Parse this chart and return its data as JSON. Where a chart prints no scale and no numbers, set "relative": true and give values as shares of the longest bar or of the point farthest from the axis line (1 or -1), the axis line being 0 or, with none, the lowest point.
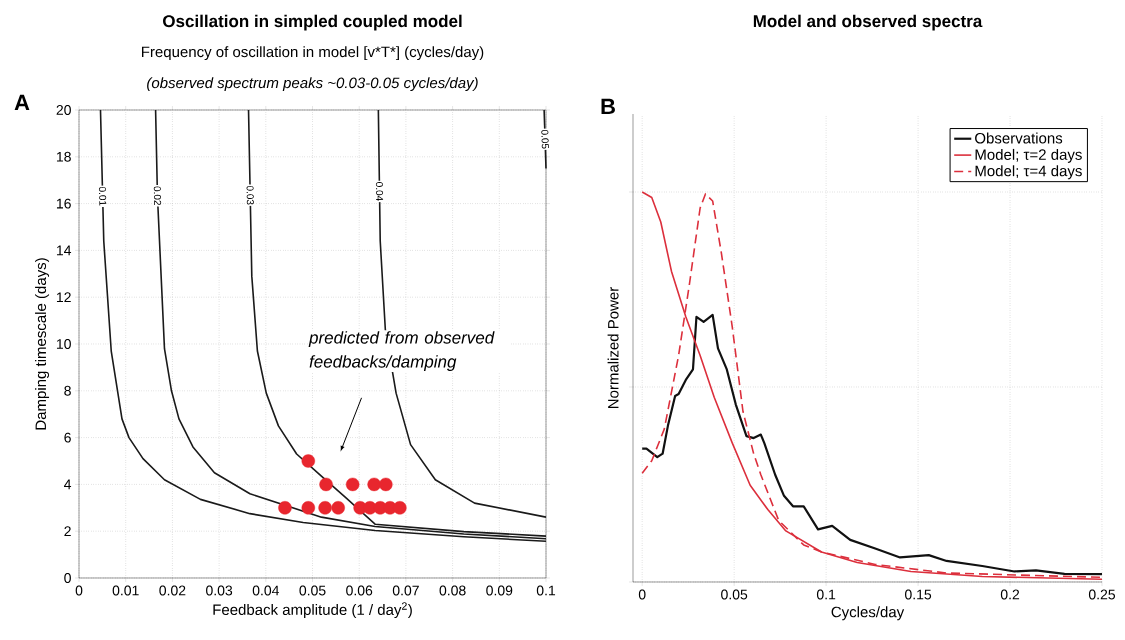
{
  "chart_data": [
    {
      "type": "line",
      "title": "Oscillation in simpled coupled model",
      "subtitle": "Frequency of oscillation in model [v*T*] (cycles/day)",
      "xlabel": "Feedback amplitude (1 / day$^{2}$)",
      "ylabel": "Damping timescale (days)",
      "xlim": [
        0,
        0.1
      ],
      "ylim": [
        0,
        20
      ],
      "xticks": [
        0,
        0.01,
        0.02,
        0.03,
        0.04,
        0.05,
        0.06,
        0.07,
        0.08,
        0.09,
        0.1
      ],
      "yticks": [
        0,
        2,
        4,
        6,
        8,
        10,
        12,
        14,
        16,
        18,
        20
      ],
      "grid": true,
      "annotations": [
        "(observed spectrum peaks ~0.03-0.05 cycles/day)",
        "A",
        "predicted from observed feedbacks/damping"
      ],
      "series": [
        {
          "name": "0.01",
          "color": "#1a1a1a",
          "x": [
            0.0046,
            0.0053,
            0.0069,
            0.0092,
            0.0107,
            0.0137,
            0.0183,
            0.026,
            0.0366,
            0.048,
            0.0634,
            0.0824,
            0.1
          ],
          "values": [
            20,
            14.4,
            9.7,
            6.8,
            6.0,
            5.1,
            4.2,
            3.36,
            2.75,
            2.37,
            2.03,
            1.76,
            1.57
          ]
        },
        {
          "name": "0.02",
          "color": "#1a1a1a",
          "x": [
            0.0164,
            0.0168,
            0.0183,
            0.0198,
            0.0214,
            0.0244,
            0.029,
            0.0366,
            0.0443,
            0.0519,
            0.0634,
            0.0824,
            0.1
          ],
          "values": [
            20,
            16.3,
            9.8,
            8.0,
            6.8,
            5.6,
            4.5,
            3.6,
            null,
            2.6,
            2.2,
            1.88,
            1.68
          ]
        },
        {
          "name": "0.03",
          "color": "#1a1a1a",
          "x": [
            0.0363,
            0.037,
            0.0382,
            0.0401,
            0.0427,
            0.0466,
            0.0519,
            0.0573,
            0.0634,
            0.0824,
            0.1
          ],
          "values": [
            20,
            12.9,
            9.7,
            7.9,
            6.5,
            5.3,
            4.35,
            3.4,
            2.3,
            1.98,
            1.79
          ]
        },
        {
          "name": "0.04",
          "color": "#1a1a1a",
          "x": [
            0.0641,
            0.0645,
            0.0656,
            0.0679,
            0.071,
            0.0763,
            0.0847,
            0.1
          ],
          "values": [
            20,
            14.4,
            10.6,
            7.9,
            5.7,
            4.2,
            3.2,
            2.6
          ]
        },
        {
          "name": "0.05",
          "color": "#1a1a1a",
          "x": [
            0.0996,
            0.1
          ],
          "values": [
            20,
            17.5
          ]
        },
        {
          "type": "scatter",
          "marker": "circle",
          "color": "#e8262e",
          "x": [
            0.0491,
            0.0529,
            0.0586,
            0.0632,
            0.0657,
            0.0441,
            0.0491,
            0.0527,
            0.0555,
            0.0602,
            0.0623,
            0.0645,
            0.0666,
            0.0687
          ],
          "values": [
            5,
            4,
            4,
            4,
            4,
            3,
            3,
            3,
            3,
            3,
            3,
            3,
            3,
            3
          ]
        }
      ]
    },
    {
      "type": "line",
      "title": "Model and observed spectra",
      "xlabel": "Cycles/day",
      "ylabel": "Normalized Power",
      "relative": true,
      "xlim": [
        -0.005,
        0.25
      ],
      "xticks": [
        0,
        0.05,
        0.1,
        0.15,
        0.2,
        0.25
      ],
      "grid": true,
      "legend": "top right",
      "annotations": [
        "B"
      ],
      "series": [
        {
          "name": "Observations",
          "color": "#111111",
          "x": [
            0,
            0.0023,
            0.0082,
            0.0111,
            0.014,
            0.0179,
            0.0198,
            0.0237,
            0.0276,
            0.0295,
            0.0334,
            0.0383,
            0.0412,
            0.046,
            0.0509,
            0.0567,
            0.0606,
            0.0645,
            0.0664,
            0.0723,
            0.0771,
            0.082,
            0.0878,
            0.0956,
            0.1033,
            0.1131,
            0.1267,
            0.1402,
            0.1558,
            0.1655,
            0.1849,
            0.2024,
            0.2141,
            0.2296,
            0.25
          ],
          "values": [
            0.342,
            0.342,
            0.32,
            0.329,
            0.401,
            0.477,
            0.482,
            0.518,
            0.545,
            0.68,
            0.667,
            0.685,
            0.599,
            0.545,
            0.455,
            0.374,
            0.369,
            0.378,
            0.356,
            0.275,
            0.221,
            0.194,
            0.194,
            0.135,
            0.144,
            0.108,
            0.086,
            0.063,
            0.069,
            0.054,
            0.041,
            0.027,
            0.03,
            0.021,
            0.02
          ]
        },
        {
          "name": "Model; τ=2 days",
          "color": "#dc2f3c",
          "x": [
            0,
            0.0052,
            0.0101,
            0.0159,
            0.0237,
            0.0315,
            0.0392,
            0.049,
            0.0587,
            0.0684,
            0.0781,
            0.0975,
            0.1169,
            0.1461,
            0.1849,
            0.25
          ],
          "values": [
            1,
            0.986,
            0.923,
            0.797,
            0.68,
            0.581,
            0.473,
            0.356,
            0.248,
            0.185,
            0.131,
            0.077,
            0.05,
            0.027,
            0.014,
            0.007
          ]
        },
        {
          "name": "Model; τ=4 days",
          "color": "#dc2f3c",
          "line_style": "dashed",
          "x": [
            0,
            0.0052,
            0.012,
            0.0198,
            0.0256,
            0.0315,
            0.0344,
            0.0383,
            0.0431,
            0.049,
            0.0548,
            0.0606,
            0.0645,
            0.0742,
            0.0878,
            0.0975,
            0.1267,
            0.1655,
            0.25
          ],
          "values": [
            0.279,
            0.311,
            0.392,
            0.581,
            0.761,
            0.959,
            0.995,
            0.977,
            0.842,
            0.653,
            0.437,
            0.329,
            0.275,
            0.158,
            0.095,
            0.077,
            0.045,
            0.023,
            0.012
          ]
        }
      ]
    }
  ]
}
